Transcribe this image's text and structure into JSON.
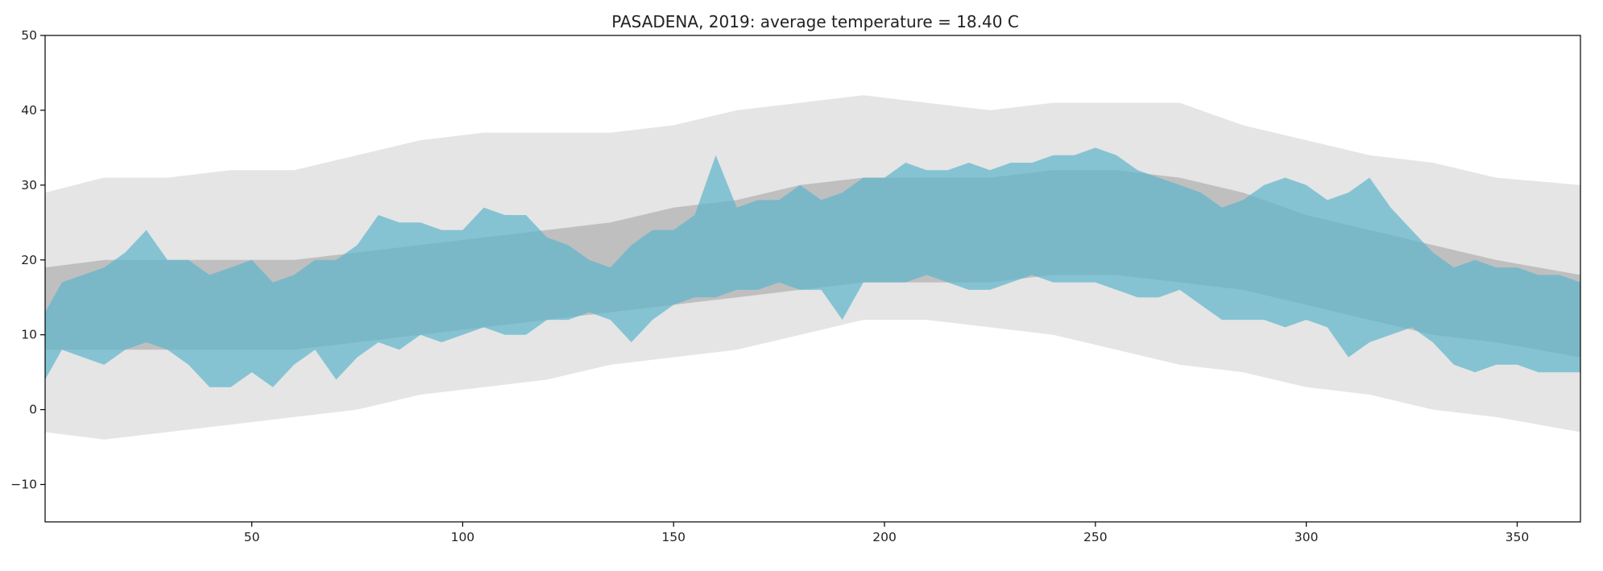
{
  "chart_data": {
    "type": "area",
    "title": "PASADENA, 2019: average temperature = 18.40 C",
    "xlabel": "",
    "ylabel": "",
    "xlim": [
      1,
      365
    ],
    "ylim": [
      -15,
      50
    ],
    "x_ticks": [
      50,
      100,
      150,
      200,
      250,
      300,
      350
    ],
    "y_ticks": [
      -10,
      0,
      10,
      20,
      30,
      40,
      50
    ],
    "grid": false,
    "legend": "none",
    "colors": {
      "record_range": "#e5e5e5",
      "normal_range": "#bfbfbf",
      "observed_range": "#5fb5cc"
    },
    "series": [
      {
        "role": "record_range",
        "x_days": [
          1,
          15,
          30,
          45,
          60,
          75,
          90,
          105,
          120,
          135,
          150,
          165,
          180,
          195,
          210,
          225,
          240,
          255,
          270,
          285,
          300,
          315,
          330,
          345,
          365
        ],
        "low": [
          -3,
          -4,
          -3,
          -2,
          -1,
          0,
          2,
          3,
          4,
          6,
          7,
          8,
          10,
          12,
          12,
          11,
          10,
          8,
          6,
          5,
          3,
          2,
          0,
          -1,
          -3
        ],
        "high": [
          29,
          31,
          31,
          32,
          32,
          34,
          36,
          37,
          37,
          37,
          38,
          40,
          41,
          42,
          41,
          40,
          41,
          41,
          41,
          38,
          36,
          34,
          33,
          31,
          30
        ]
      },
      {
        "role": "normal_range",
        "x_days": [
          1,
          15,
          30,
          45,
          60,
          75,
          90,
          105,
          120,
          135,
          150,
          165,
          180,
          195,
          210,
          225,
          240,
          255,
          270,
          285,
          300,
          315,
          330,
          345,
          365
        ],
        "low": [
          8,
          8,
          8,
          8,
          8,
          9,
          10,
          11,
          12,
          13,
          14,
          15,
          16,
          17,
          17,
          17,
          18,
          18,
          17,
          16,
          14,
          12,
          10,
          9,
          7
        ],
        "high": [
          19,
          20,
          20,
          20,
          20,
          21,
          22,
          23,
          24,
          25,
          27,
          28,
          30,
          31,
          31,
          31,
          32,
          32,
          31,
          29,
          26,
          24,
          22,
          20,
          18
        ]
      },
      {
        "role": "observed_range",
        "x_days": [
          1,
          5,
          10,
          15,
          20,
          25,
          30,
          35,
          40,
          45,
          50,
          55,
          60,
          65,
          70,
          75,
          80,
          85,
          90,
          95,
          100,
          105,
          110,
          115,
          120,
          125,
          130,
          135,
          140,
          145,
          150,
          155,
          160,
          165,
          170,
          175,
          180,
          185,
          190,
          195,
          200,
          205,
          210,
          215,
          220,
          225,
          230,
          235,
          240,
          245,
          250,
          255,
          260,
          265,
          270,
          275,
          280,
          285,
          290,
          295,
          300,
          305,
          310,
          315,
          320,
          325,
          330,
          335,
          340,
          345,
          350,
          355,
          360,
          365
        ],
        "low": [
          4,
          8,
          7,
          6,
          8,
          9,
          8,
          6,
          3,
          3,
          5,
          3,
          6,
          8,
          4,
          7,
          9,
          8,
          10,
          9,
          10,
          11,
          10,
          10,
          12,
          12,
          13,
          12,
          9,
          12,
          14,
          15,
          15,
          16,
          16,
          17,
          16,
          16,
          12,
          17,
          17,
          17,
          18,
          17,
          16,
          16,
          17,
          18,
          17,
          17,
          17,
          16,
          15,
          15,
          16,
          14,
          12,
          12,
          12,
          11,
          12,
          11,
          7,
          9,
          10,
          11,
          9,
          6,
          5,
          6,
          6,
          5,
          5,
          5
        ],
        "high": [
          13,
          17,
          18,
          19,
          21,
          24,
          20,
          20,
          18,
          19,
          20,
          17,
          18,
          20,
          20,
          22,
          26,
          25,
          25,
          24,
          24,
          27,
          26,
          26,
          23,
          22,
          20,
          19,
          22,
          24,
          24,
          26,
          34,
          27,
          28,
          28,
          30,
          28,
          29,
          31,
          31,
          33,
          32,
          32,
          33,
          32,
          33,
          33,
          34,
          34,
          35,
          34,
          32,
          31,
          30,
          29,
          27,
          28,
          30,
          31,
          30,
          28,
          29,
          31,
          27,
          24,
          21,
          19,
          20,
          19,
          19,
          18,
          18,
          17
        ]
      }
    ]
  }
}
